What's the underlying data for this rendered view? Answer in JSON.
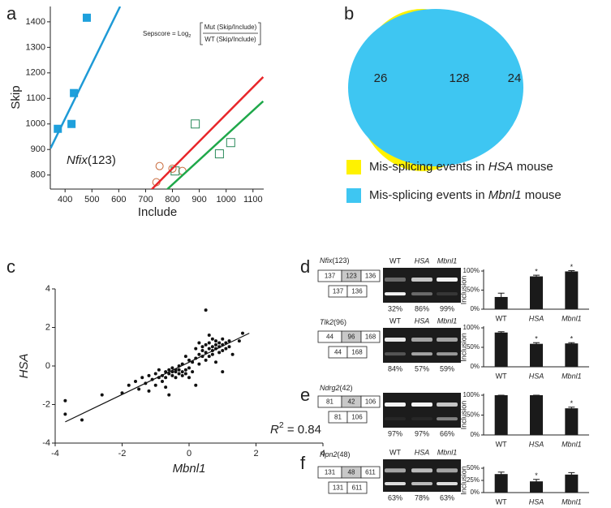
{
  "panel_labels": [
    "a",
    "b",
    "c",
    "d",
    "e",
    "f"
  ],
  "chart_data": [
    {
      "type": "scatter",
      "x_label": "Include",
      "y_label": "Skip",
      "xlim": [
        345,
        1140
      ],
      "ylim": [
        745,
        1460
      ],
      "xticks": [
        400,
        500,
        600,
        700,
        800,
        900,
        1000,
        1100
      ],
      "yticks": [
        800,
        900,
        1000,
        1100,
        1200,
        1300,
        1400
      ],
      "annotation": [
        "Nfix",
        "(123)"
      ],
      "formula": [
        "Sepscore = Log",
        "2",
        "Mut (Skip/Include)",
        "WT (Skip/Include)"
      ],
      "series": [
        {
          "marker": "square-filled",
          "color": "#1ea0dc",
          "x": [
            481,
            433,
            424,
            373
          ],
          "values": [
            1416,
            1121,
            1000,
            981
          ]
        },
        {
          "marker": "circle-open",
          "color": "#c8693a",
          "x": [
            752,
            740,
            800,
            837
          ],
          "values": [
            835,
            772,
            825,
            816
          ]
        },
        {
          "marker": "square-open",
          "color": "#2a8a5a",
          "x": [
            885,
            1017,
            975,
            810
          ],
          "values": [
            1000,
            927,
            883,
            816
          ]
        },
        {
          "marker": "line",
          "color": "#1e9ad6",
          "x": [
            346,
            605
          ],
          "values": [
            905,
            1460
          ]
        },
        {
          "marker": "line",
          "color": "#e8262a",
          "x": [
            686,
            1138
          ],
          "values": [
            705,
            1184
          ]
        },
        {
          "marker": "line",
          "color": "#1fa84a",
          "x": [
            740,
            1138
          ],
          "values": [
            705,
            1089
          ]
        }
      ]
    },
    {
      "type": "venn",
      "values": [
        26,
        128,
        24
      ],
      "sets": [
        {
          "color": "#fff200",
          "legend": [
            "Mis-splicing events in ",
            "HSA",
            " mouse"
          ]
        },
        {
          "color": "#3ec6f2",
          "legend": [
            "Mis-splicing events in ",
            "Mbnl1",
            " mouse"
          ]
        }
      ]
    },
    {
      "type": "scatter",
      "x_label": "Mbnl1",
      "y_label": "HSA",
      "xlim": [
        -4,
        4
      ],
      "ylim": [
        -4,
        4
      ],
      "xticks": [
        -4,
        -2,
        0,
        2,
        4
      ],
      "yticks": [
        -4,
        -2,
        0,
        2,
        4
      ],
      "annotation": [
        "R",
        "2",
        " = 0.84"
      ],
      "series": [
        {
          "marker": "dot",
          "color": "#111",
          "x": [
            -3.7,
            -3.7,
            -3.2,
            -2.6,
            -2.0,
            -1.8,
            -1.6,
            -1.5,
            -1.4,
            -1.3,
            -1.2,
            -1.2,
            -1.1,
            -1.0,
            -1.0,
            -0.9,
            -0.9,
            -0.8,
            -0.8,
            -0.7,
            -0.7,
            -0.7,
            -0.6,
            -0.6,
            -0.6,
            -0.5,
            -0.5,
            -0.5,
            -0.4,
            -0.4,
            -0.4,
            -0.3,
            -0.3,
            -0.3,
            -0.2,
            -0.2,
            -0.2,
            -0.1,
            -0.1,
            0.0,
            0.0,
            0.0,
            0.1,
            0.1,
            0.2,
            0.2,
            0.3,
            0.3,
            0.4,
            0.4,
            0.4,
            0.5,
            0.5,
            0.5,
            0.5,
            0.6,
            0.6,
            0.6,
            0.6,
            0.7,
            0.7,
            0.7,
            0.7,
            0.8,
            0.8,
            0.8,
            0.8,
            0.9,
            0.9,
            0.9,
            1.0,
            1.0,
            1.0,
            1.1,
            1.1,
            1.2,
            1.2,
            1.3,
            1.5,
            1.6,
            0.3,
            0.2,
            -0.1,
            1.0
          ],
          "values": [
            -1.8,
            -2.5,
            -2.8,
            -1.5,
            -1.4,
            -1.0,
            -0.8,
            -1.2,
            -0.6,
            -0.9,
            -1.3,
            -0.5,
            -0.7,
            -1.0,
            -0.4,
            -0.6,
            -0.2,
            -0.8,
            -0.5,
            -0.3,
            -0.6,
            -1.1,
            -0.4,
            -0.2,
            -1.5,
            -0.5,
            -0.3,
            -0.1,
            -0.6,
            -0.3,
            -0.2,
            -0.4,
            -0.2,
            0.0,
            -0.3,
            -0.5,
            0.1,
            -0.2,
            -0.4,
            -0.1,
            0.3,
            -0.6,
            0.2,
            -0.3,
            -1.0,
            0.4,
            0.6,
            0.1,
            0.5,
            0.8,
            1.0,
            0.3,
            0.7,
            1.1,
            2.9,
            0.9,
            0.5,
            1.2,
            1.6,
            0.8,
            1.0,
            1.4,
            0.6,
            1.1,
            0.9,
            1.3,
            0.2,
            1.0,
            1.2,
            0.7,
            1.1,
            1.4,
            0.8,
            1.2,
            0.9,
            1.0,
            1.3,
            0.6,
            1.3,
            1.7,
            1.2,
            0.9,
            0.5,
            -0.3
          ]
        },
        {
          "marker": "line",
          "color": "#111",
          "x": [
            -3.7,
            1.8
          ],
          "values": [
            -2.9,
            1.7
          ]
        }
      ]
    },
    {
      "type": "bar",
      "y_label": "Inclusion",
      "categories": [
        "WT",
        "HSA",
        "Mbnl1"
      ],
      "values": [
        32,
        86,
        99
      ],
      "errors": [
        10,
        3,
        2
      ],
      "markers": [
        null,
        "*",
        "*"
      ],
      "color": "#1a1a1a",
      "ylim": [
        0,
        100
      ],
      "yticks": [
        {
          "value": 0,
          "label": "0%"
        },
        {
          "value": 50,
          "label": "50%"
        },
        {
          "value": 100,
          "label": "100%"
        }
      ]
    },
    {
      "type": "bar",
      "y_label": "Inclusion",
      "categories": [
        "WT",
        "HSA",
        "Mbnl1"
      ],
      "values": [
        88,
        59,
        60
      ],
      "errors": [
        2,
        3,
        2
      ],
      "markers": [
        null,
        "*",
        "*"
      ],
      "color": "#1a1a1a",
      "ylim": [
        0,
        100
      ],
      "yticks": [
        {
          "value": 0,
          "label": "0%"
        },
        {
          "value": 50,
          "label": "50%"
        },
        {
          "value": 100,
          "label": "100%"
        }
      ]
    },
    {
      "type": "bar",
      "y_label": "Inclusion",
      "categories": [
        "WT",
        "HSA",
        "Mbnl1"
      ],
      "values": [
        100,
        100,
        67
      ],
      "errors": [
        0,
        0,
        3
      ],
      "markers": [
        null,
        null,
        "*"
      ],
      "color": "#1a1a1a",
      "ylim": [
        0,
        100
      ],
      "yticks": [
        {
          "value": 0,
          "label": "0%"
        },
        {
          "value": 50,
          "label": "50%"
        },
        {
          "value": 100,
          "label": "100%"
        }
      ]
    },
    {
      "type": "bar",
      "y_label": "Inclusion",
      "categories": [
        "WT",
        "HSA",
        "Mbnl1"
      ],
      "values": [
        38,
        23,
        37
      ],
      "errors": [
        4,
        4,
        4
      ],
      "markers": [
        null,
        "*",
        null
      ],
      "color": "#1a1a1a",
      "ylim": [
        0,
        50
      ],
      "yticks": [
        {
          "value": 0,
          "label": "0%"
        },
        {
          "value": 25,
          "label": "25%"
        },
        {
          "value": 50,
          "label": "50%"
        }
      ]
    }
  ],
  "gels": [
    {
      "gene": "Nfix",
      "exon": "(123)",
      "exons_top": [
        "137",
        "123",
        "136"
      ],
      "exons_bottom": [
        "137",
        "136"
      ],
      "lanes": [
        "WT",
        "HSA",
        "Mbnl1"
      ],
      "inclusion": [
        "32%",
        "86%",
        "99%"
      ]
    },
    {
      "gene": "Tlk2",
      "exon": "(96)",
      "exons_top": [
        "44",
        "96",
        "168"
      ],
      "exons_bottom": [
        "44",
        "168"
      ],
      "lanes": [
        "WT",
        "HSA",
        "Mbnl1"
      ],
      "inclusion": [
        "84%",
        "57%",
        "59%"
      ]
    },
    {
      "gene": "Ndrg2",
      "exon": "(42)",
      "exons_top": [
        "81",
        "42",
        "106"
      ],
      "exons_bottom": [
        "81",
        "106"
      ],
      "inclusion": [
        "97%",
        "97%",
        "66%"
      ]
    },
    {
      "gene": "Rpn2",
      "exon": "(48)",
      "exons_top": [
        "131",
        "48",
        "611"
      ],
      "exons_bottom": [
        "131",
        "611"
      ],
      "lanes": [
        "WT",
        "HSA",
        "Mbnl1"
      ],
      "inclusion": [
        "63%",
        "78%",
        "63%"
      ]
    }
  ]
}
